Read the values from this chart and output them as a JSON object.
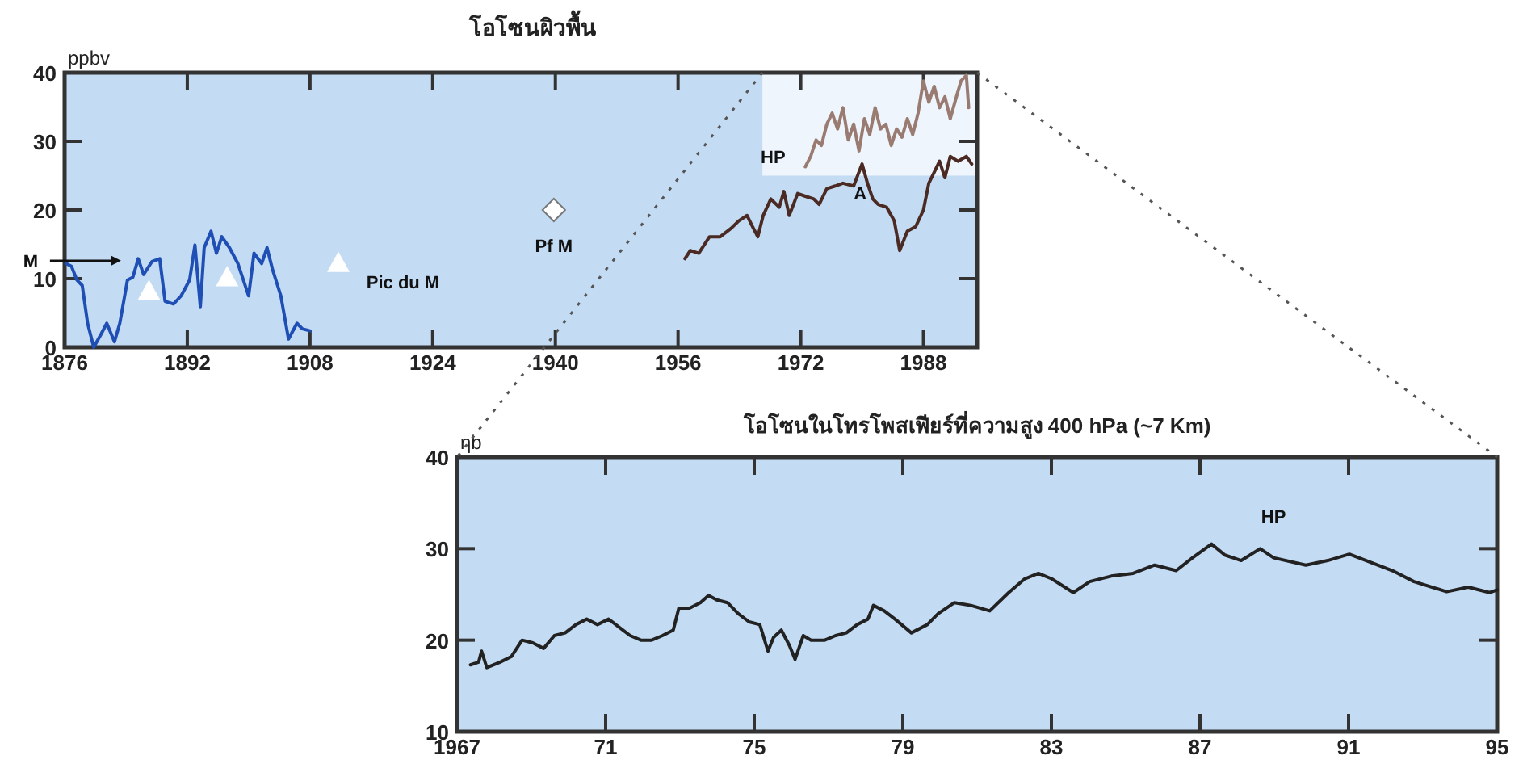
{
  "chart_data": [
    {
      "type": "line",
      "title": "โอโซนผิวพื้น",
      "ylabel": "ppbv",
      "xlim": [
        1876,
        1995
      ],
      "xticks": [
        1876,
        1892,
        1908,
        1924,
        1940,
        1956,
        1972,
        1988
      ],
      "ylim": [
        0,
        40
      ],
      "yticks": [
        0,
        10,
        20,
        30,
        40
      ],
      "series": [
        {
          "name": "M",
          "color": "#1f4fb5",
          "x": [
            1876.2,
            1876.9,
            1877.6,
            1878.3,
            1879.0,
            1879.8,
            1880.8,
            1881.5,
            1882.5,
            1883.2,
            1884.2,
            1884.9,
            1885.6,
            1886.3,
            1887.4,
            1888.4,
            1889.1,
            1890.2,
            1891.2,
            1892.3,
            1893.0,
            1893.7,
            1894.2,
            1895.1,
            1895.8,
            1896.5,
            1897.5,
            1898.6,
            1900.0,
            1900.7,
            1901.7,
            1902.4,
            1903.1,
            1904.2,
            1905.2,
            1906.3,
            1907.0,
            1908.0
          ],
          "values": [
            12.2,
            11.8,
            9.8,
            9.0,
            3.5,
            0,
            2.0,
            3.5,
            0.8,
            3.5,
            9.8,
            10.2,
            12.9,
            10.6,
            12.5,
            12.9,
            6.7,
            6.3,
            7.5,
            9.8,
            14.9,
            5.9,
            14.5,
            16.9,
            13.7,
            16.1,
            14.5,
            12.2,
            7.5,
            13.7,
            12.2,
            14.5,
            11.4,
            7.5,
            1.2,
            3.5,
            2.7,
            2.4
          ]
        },
        {
          "name": "Pic du M",
          "type": "scatter",
          "marker": "triangle",
          "color": "#ffffff",
          "x": [
            1887.0,
            1897.2,
            1911.7
          ],
          "values": [
            8.2,
            10.2,
            12.3
          ]
        },
        {
          "name": "Pf M",
          "type": "scatter",
          "marker": "diamond",
          "color": "#ffffff",
          "x": [
            1939.8
          ],
          "values": [
            20
          ]
        },
        {
          "name": "HP",
          "color": "#9a7b72",
          "x": [
            1972.6,
            1973.3,
            1974.0,
            1974.7,
            1975.4,
            1976.1,
            1976.8,
            1977.5,
            1978.2,
            1978.9,
            1979.6,
            1980.3,
            1981.0,
            1981.7,
            1982.4,
            1983.1,
            1983.8,
            1984.5,
            1985.2,
            1985.9,
            1986.6,
            1987.3,
            1988.0,
            1988.7,
            1989.4,
            1990.1,
            1990.8,
            1991.5,
            1992.2,
            1992.9,
            1993.6,
            1993.9
          ],
          "values": [
            26.3,
            27.8,
            30.2,
            29.4,
            32.5,
            34.1,
            31.8,
            34.9,
            30.2,
            32.5,
            28.6,
            33.3,
            31.0,
            34.9,
            31.8,
            32.5,
            29.4,
            31.8,
            30.6,
            33.3,
            31.0,
            34.1,
            38.8,
            35.7,
            38.0,
            34.9,
            36.5,
            33.3,
            36.1,
            38.8,
            39.6,
            34.9
          ]
        },
        {
          "name": "A",
          "color": "#4a2a22",
          "x": [
            1956.9,
            1957.6,
            1958.7,
            1960.1,
            1961.5,
            1962.9,
            1963.9,
            1965.0,
            1965.7,
            1966.4,
            1967.1,
            1968.1,
            1969.2,
            1969.8,
            1970.5,
            1971.6,
            1972.6,
            1973.7,
            1974.4,
            1975.4,
            1976.5,
            1977.5,
            1978.9,
            1980.0,
            1980.7,
            1981.4,
            1982.1,
            1983.2,
            1984.2,
            1984.9,
            1985.9,
            1987.0,
            1988.0,
            1988.7,
            1989.4,
            1990.1,
            1990.8,
            1991.5,
            1992.5,
            1993.6,
            1994.3
          ],
          "values": [
            12.9,
            14.1,
            13.7,
            16.1,
            16.1,
            17.3,
            18.4,
            19.2,
            17.6,
            16.1,
            19.2,
            21.6,
            20.4,
            22.7,
            19.2,
            22.4,
            22.0,
            21.6,
            20.8,
            23.1,
            23.5,
            23.9,
            23.5,
            26.7,
            23.9,
            21.6,
            20.8,
            20.4,
            18.4,
            14.1,
            16.9,
            17.6,
            20.0,
            23.9,
            25.5,
            27.1,
            24.7,
            27.8,
            27.1,
            27.8,
            26.7
          ]
        }
      ]
    },
    {
      "type": "line",
      "title": "โอโซนในโทรโพสเฟียร์ที่ความสูง 400 hPa (~7 Km)",
      "ylabel": "ηb",
      "xlim": [
        1967,
        1995
      ],
      "xticks": [
        1967,
        {
          "value": 1971,
          "label": "71"
        },
        {
          "value": 1975,
          "label": "75"
        },
        {
          "value": 1979,
          "label": "79"
        },
        {
          "value": 1983,
          "label": "83"
        },
        {
          "value": 1987,
          "label": "87"
        },
        {
          "value": 1991,
          "label": "91"
        },
        {
          "value": 1995,
          "label": "95"
        }
      ],
      "ylim": [
        10,
        40
      ],
      "yticks": [
        10,
        20,
        30,
        40
      ],
      "series": [
        {
          "name": "HP",
          "color": "#222222",
          "x": [
            1967.36,
            1967.58,
            1967.66,
            1967.8,
            1968.16,
            1968.46,
            1968.75,
            1969.04,
            1969.33,
            1969.62,
            1969.91,
            1970.2,
            1970.49,
            1970.78,
            1971.08,
            1971.37,
            1971.66,
            1971.95,
            1972.24,
            1972.53,
            1972.82,
            1972.97,
            1973.26,
            1973.55,
            1973.77,
            1973.99,
            1974.28,
            1974.57,
            1974.86,
            1975.15,
            1975.37,
            1975.52,
            1975.73,
            1975.95,
            1976.1,
            1976.32,
            1976.53,
            1976.9,
            1977.19,
            1977.48,
            1977.77,
            1978.06,
            1978.21,
            1978.5,
            1978.79,
            1979.23,
            1979.66,
            1979.95,
            1980.39,
            1980.83,
            1981.34,
            1981.85,
            1982.28,
            1982.65,
            1983.01,
            1983.59,
            1984.03,
            1984.61,
            1985.2,
            1985.78,
            1986.36,
            1986.8,
            1987.31,
            1987.67,
            1988.11,
            1988.62,
            1988.98,
            1989.85,
            1990.44,
            1991.02,
            1991.6,
            1992.18,
            1992.76,
            1993.64,
            1994.22,
            1994.8,
            1995.0
          ],
          "values": [
            17.3,
            17.6,
            18.8,
            17.0,
            17.6,
            18.2,
            20.0,
            19.7,
            19.1,
            20.5,
            20.8,
            21.7,
            22.3,
            21.7,
            22.3,
            21.4,
            20.5,
            20.0,
            20.0,
            20.5,
            21.1,
            23.5,
            23.5,
            24.1,
            24.9,
            24.4,
            24.1,
            22.9,
            22.0,
            21.7,
            18.8,
            20.3,
            21.1,
            19.4,
            17.9,
            20.5,
            20.0,
            20.0,
            20.5,
            20.8,
            21.7,
            22.3,
            23.8,
            23.2,
            22.3,
            20.8,
            21.7,
            22.9,
            24.1,
            23.8,
            23.2,
            25.2,
            26.7,
            27.3,
            26.7,
            25.2,
            26.4,
            27.0,
            27.3,
            28.2,
            27.6,
            29.0,
            30.5,
            29.3,
            28.7,
            30.0,
            29.0,
            28.2,
            28.7,
            29.4,
            28.5,
            27.6,
            26.4,
            25.3,
            25.8,
            25.2,
            25.5
          ]
        }
      ]
    }
  ]
}
